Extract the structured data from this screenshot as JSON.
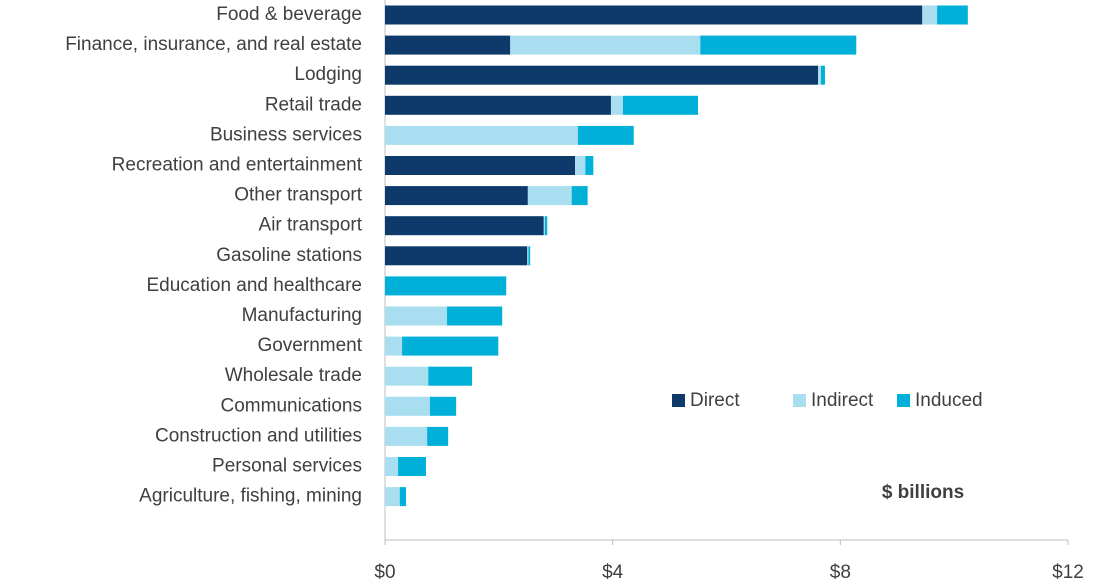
{
  "chart_data": {
    "type": "stacked_barh",
    "categories": [
      "Food & beverage",
      "Finance, insurance, and real estate",
      "Lodging",
      "Retail trade",
      "Business services",
      "Recreation and entertainment",
      "Other transport",
      "Air transport",
      "Gasoline stations",
      "Education and healthcare",
      "Manufacturing",
      "Government",
      "Wholesale trade",
      "Communications",
      "Construction and utilities",
      "Personal services",
      "Agriculture, fishing, mining"
    ],
    "series": [
      {
        "name": "Direct",
        "color": "#0d3a6b",
        "values": [
          9.44,
          2.2,
          7.61,
          3.97,
          0,
          3.34,
          2.51,
          2.79,
          2.5,
          0,
          0,
          0,
          0,
          0,
          0,
          0,
          0
        ]
      },
      {
        "name": "Indirect",
        "color": "#a9def0",
        "values": [
          0.26,
          3.34,
          0.05,
          0.21,
          3.39,
          0.18,
          0.77,
          0.02,
          0.02,
          0,
          1.09,
          0.3,
          0.76,
          0.79,
          0.74,
          0.23,
          0.26
        ]
      },
      {
        "name": "Induced",
        "color": "#00b0d8",
        "values": [
          0.54,
          2.74,
          0.07,
          1.32,
          0.98,
          0.14,
          0.28,
          0.04,
          0.03,
          2.13,
          0.97,
          1.69,
          0.77,
          0.46,
          0.37,
          0.49,
          0.11
        ]
      }
    ],
    "xlim": [
      0,
      12
    ],
    "xticks": [
      {
        "value": 0,
        "label": "$0"
      },
      {
        "value": 4,
        "label": "$4"
      },
      {
        "value": 8,
        "label": "$8"
      },
      {
        "value": 12,
        "label": "$12"
      }
    ],
    "annotation": "$ billions",
    "legend": "right"
  }
}
